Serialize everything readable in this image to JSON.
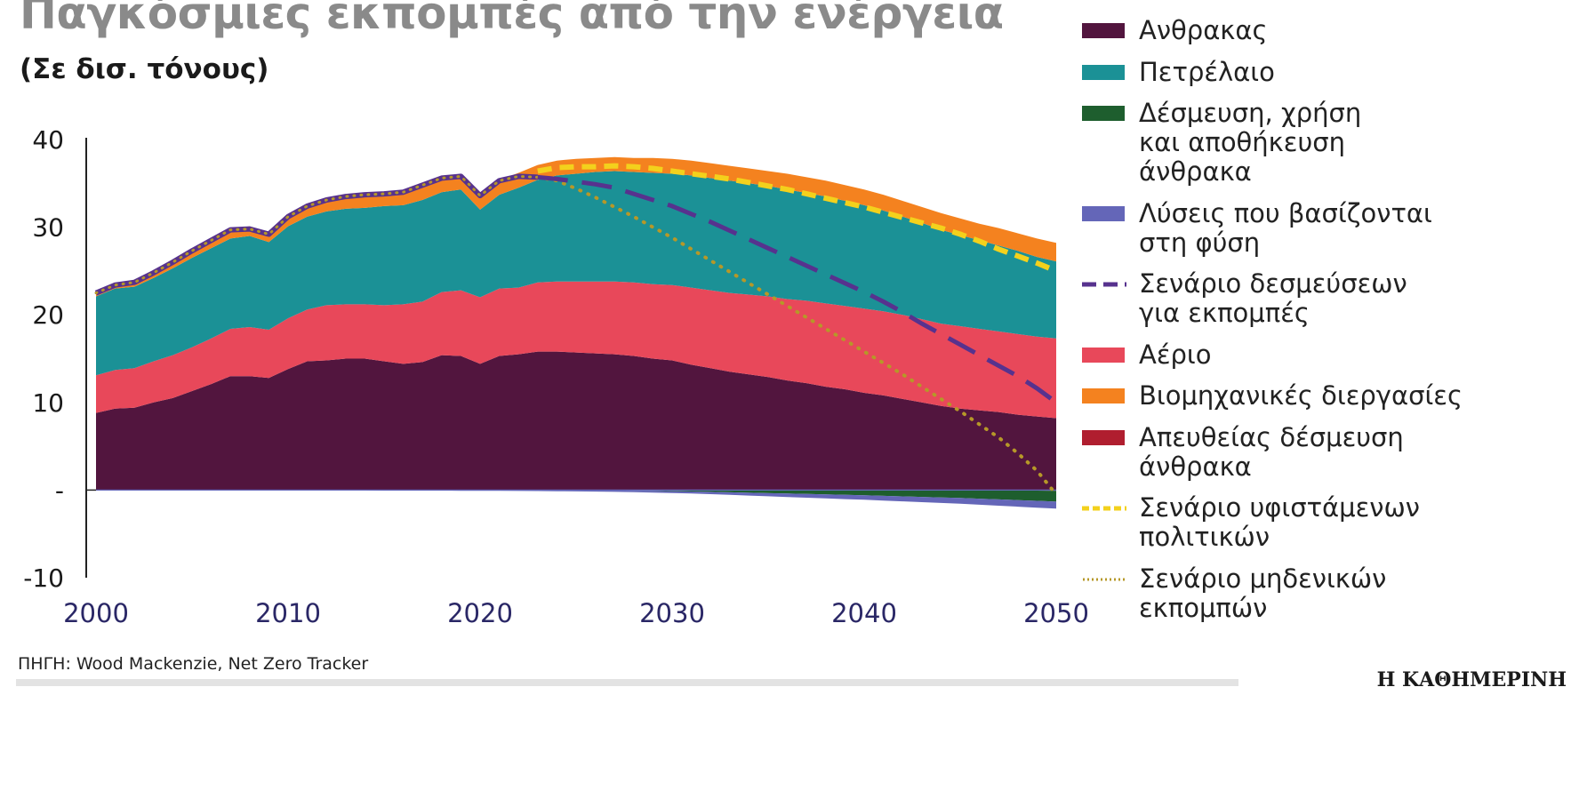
{
  "title": "Παγκόσμιες εκπομπές από την ενέργεια",
  "subtitle": "(Σε δισ. τόνους)",
  "source": "ΠΗΓΗ: Wood Mackenzie, Net Zero Tracker",
  "brand": "Η ΚΑΘΗΜΕΡΙΝΗ",
  "colors": {
    "coal": "#52153e",
    "oil": "#1b9196",
    "ccus": "#1e5e2e",
    "nature": "#6466b8",
    "commitments": "#57328e",
    "gas": "#e8485a",
    "industrial": "#f4821f",
    "dac": "#b01e2f",
    "current_policies": "#f3d11c",
    "net_zero": "#b69828",
    "axis": "#222222",
    "xtick": "#2a2766"
  },
  "legend": [
    {
      "key": "coal",
      "type": "box",
      "color": "#52153e",
      "lines": [
        "Ανθρακας"
      ]
    },
    {
      "key": "oil",
      "type": "box",
      "color": "#1b9196",
      "lines": [
        "Πετρέλαιο"
      ]
    },
    {
      "key": "ccus",
      "type": "box",
      "color": "#1e5e2e",
      "lines": [
        "Δέσμευση, χρήση",
        "και αποθήκευση",
        "άνθρακα"
      ]
    },
    {
      "key": "nature",
      "type": "box",
      "color": "#6466b8",
      "lines": [
        "Λύσεις που βασίζονται",
        "στη φύση"
      ]
    },
    {
      "key": "commitments",
      "type": "dash",
      "color": "#57328e",
      "lines": [
        "Σενάριο δεσμεύσεων",
        "για εκπομπές"
      ]
    },
    {
      "key": "gas",
      "type": "box",
      "color": "#e8485a",
      "lines": [
        "Αέριο"
      ]
    },
    {
      "key": "industrial",
      "type": "box",
      "color": "#f4821f",
      "lines": [
        "Βιομηχανικές διεργασίες"
      ]
    },
    {
      "key": "dac",
      "type": "box",
      "color": "#b01e2f",
      "lines": [
        "Απευθείας δέσμευση",
        "άνθρακα"
      ]
    },
    {
      "key": "current_policies",
      "type": "yellowdash",
      "color": "#f3d11c",
      "lines": [
        "Σενάριο υφιστάμενων",
        "πολιτικών"
      ]
    },
    {
      "key": "net_zero",
      "type": "dots",
      "color": "#b69828",
      "lines": [
        "Σενάριο μηδενικών",
        "εκπομπών"
      ]
    }
  ],
  "chart_data": {
    "type": "area",
    "title": "Παγκόσμιες εκπομπές από την ενέργεια",
    "ylabel": "(Σε δισ. τόνους)",
    "xlim": [
      2000,
      2050
    ],
    "ylim": [
      -10,
      40
    ],
    "x_ticks": [
      "2000",
      "2010",
      "2020",
      "2030",
      "2040",
      "2050"
    ],
    "y_ticks": [
      {
        "value": 40,
        "label": "40"
      },
      {
        "value": 30,
        "label": "30"
      },
      {
        "value": 20,
        "label": "20"
      },
      {
        "value": 10,
        "label": "10"
      },
      {
        "value": 0,
        "label": "-"
      },
      {
        "value": -10,
        "label": "-10"
      }
    ],
    "x": [
      2000,
      2001,
      2002,
      2003,
      2004,
      2005,
      2006,
      2007,
      2008,
      2009,
      2010,
      2011,
      2012,
      2013,
      2014,
      2015,
      2016,
      2017,
      2018,
      2019,
      2020,
      2021,
      2022,
      2023,
      2024,
      2025,
      2026,
      2027,
      2028,
      2029,
      2030,
      2031,
      2032,
      2033,
      2034,
      2035,
      2036,
      2037,
      2038,
      2039,
      2040,
      2041,
      2042,
      2043,
      2044,
      2045,
      2046,
      2047,
      2048,
      2049,
      2050
    ],
    "series": [
      {
        "name": "Ανθρακας",
        "key": "coal",
        "stack": "positive",
        "values": [
          8.8,
          9.3,
          9.4,
          10.0,
          10.5,
          11.3,
          12.1,
          13.0,
          13.0,
          12.8,
          13.8,
          14.7,
          14.8,
          15.0,
          15.0,
          14.7,
          14.4,
          14.6,
          15.4,
          15.3,
          14.4,
          15.3,
          15.5,
          15.8,
          15.8,
          15.7,
          15.6,
          15.5,
          15.3,
          15.0,
          14.8,
          14.3,
          13.9,
          13.5,
          13.2,
          12.9,
          12.5,
          12.2,
          11.8,
          11.5,
          11.1,
          10.8,
          10.4,
          10.0,
          9.6,
          9.3,
          9.1,
          8.9,
          8.6,
          8.4,
          8.2
        ]
      },
      {
        "name": "Αέριο",
        "key": "gas",
        "stack": "positive",
        "values": [
          4.3,
          4.4,
          4.5,
          4.7,
          4.9,
          5.0,
          5.2,
          5.4,
          5.6,
          5.5,
          5.8,
          5.9,
          6.3,
          6.2,
          6.2,
          6.4,
          6.8,
          6.9,
          7.2,
          7.5,
          7.6,
          7.7,
          7.6,
          7.9,
          8.0,
          8.1,
          8.2,
          8.3,
          8.4,
          8.5,
          8.6,
          8.8,
          8.9,
          9.0,
          9.1,
          9.2,
          9.3,
          9.4,
          9.5,
          9.5,
          9.6,
          9.6,
          9.6,
          9.5,
          9.4,
          9.4,
          9.3,
          9.2,
          9.2,
          9.1,
          9.1
        ]
      },
      {
        "name": "Πετρέλαιο",
        "key": "oil",
        "stack": "positive",
        "values": [
          9.0,
          9.3,
          9.3,
          9.5,
          9.9,
          10.2,
          10.3,
          10.3,
          10.4,
          10.0,
          10.5,
          10.6,
          10.7,
          10.9,
          11.0,
          11.3,
          11.3,
          11.6,
          11.4,
          11.5,
          10.0,
          10.7,
          11.4,
          11.7,
          12.1,
          12.3,
          12.5,
          12.6,
          12.6,
          12.7,
          12.7,
          12.8,
          12.8,
          12.8,
          12.7,
          12.6,
          12.5,
          12.3,
          12.2,
          12.0,
          11.8,
          11.5,
          11.2,
          11.0,
          10.7,
          10.4,
          10.1,
          9.8,
          9.5,
          9.1,
          8.8
        ]
      },
      {
        "name": "Βιομηχανικές διεργασίες",
        "key": "industrial",
        "stack": "positive",
        "values": [
          0.4,
          0.5,
          0.6,
          0.7,
          0.8,
          0.9,
          1.0,
          1.1,
          1.1,
          1.1,
          1.2,
          1.4,
          1.5,
          1.5,
          1.6,
          1.6,
          1.6,
          1.7,
          1.7,
          1.6,
          1.7,
          1.7,
          1.7,
          1.7,
          1.7,
          1.7,
          1.6,
          1.6,
          1.6,
          1.7,
          1.7,
          1.7,
          1.7,
          1.7,
          1.7,
          1.7,
          1.8,
          1.8,
          1.8,
          1.8,
          1.8,
          1.8,
          1.8,
          1.8,
          1.9,
          1.9,
          1.9,
          2.0,
          2.0,
          2.1,
          2.1
        ]
      },
      {
        "name": "Απευθείας δέσμευση άνθρακα",
        "key": "dac",
        "stack": "negative",
        "values": [
          0,
          0,
          0,
          0,
          0,
          0,
          0,
          0,
          0,
          0,
          0,
          0,
          0,
          0,
          0,
          0,
          0,
          0,
          0,
          0,
          0,
          0,
          0,
          0,
          0,
          0,
          0,
          0,
          0,
          0,
          0,
          0,
          0,
          0,
          0,
          0,
          0,
          0,
          0,
          0,
          0,
          0,
          0,
          0,
          0,
          0,
          -0.01,
          -0.02,
          -0.04,
          -0.06,
          -0.08
        ]
      },
      {
        "name": "Δέσμευση, χρήση και αποθήκευση άνθρακα",
        "key": "ccus",
        "stack": "negative",
        "values": [
          0,
          0,
          0,
          0,
          0,
          0,
          0,
          0,
          0,
          0,
          0,
          0,
          0,
          0,
          0,
          0,
          0,
          0,
          0,
          0,
          0,
          0,
          0,
          0,
          -0.01,
          -0.02,
          -0.03,
          -0.05,
          -0.07,
          -0.09,
          -0.12,
          -0.16,
          -0.2,
          -0.25,
          -0.3,
          -0.35,
          -0.4,
          -0.45,
          -0.5,
          -0.55,
          -0.6,
          -0.66,
          -0.72,
          -0.78,
          -0.84,
          -0.9,
          -0.97,
          -1.04,
          -1.11,
          -1.17,
          -1.24
        ]
      },
      {
        "name": "Λύσεις που βασίζονται στη φύση",
        "key": "nature",
        "stack": "negative",
        "values": [
          -0.05,
          -0.05,
          -0.05,
          -0.05,
          -0.05,
          -0.05,
          -0.05,
          -0.05,
          -0.05,
          -0.05,
          -0.06,
          -0.06,
          -0.06,
          -0.06,
          -0.06,
          -0.07,
          -0.07,
          -0.07,
          -0.07,
          -0.08,
          -0.08,
          -0.09,
          -0.1,
          -0.11,
          -0.12,
          -0.13,
          -0.14,
          -0.15,
          -0.17,
          -0.19,
          -0.21,
          -0.24,
          -0.27,
          -0.3,
          -0.33,
          -0.36,
          -0.39,
          -0.42,
          -0.45,
          -0.48,
          -0.51,
          -0.54,
          -0.57,
          -0.6,
          -0.63,
          -0.66,
          -0.69,
          -0.72,
          -0.75,
          -0.78,
          -0.8
        ]
      }
    ],
    "scenarios": [
      {
        "name": "Σενάριο υφιστάμενων πολιτικών",
        "key": "current_policies",
        "style": "dash",
        "x": [
          2023,
          2024,
          2025,
          2026,
          2027,
          2028,
          2029,
          2030,
          2031,
          2032,
          2033,
          2034,
          2035,
          2036,
          2037,
          2038,
          2039,
          2040,
          2041,
          2042,
          2043,
          2044,
          2045,
          2046,
          2047,
          2048,
          2049,
          2050
        ],
        "values": [
          36.4,
          36.8,
          36.9,
          36.9,
          37.0,
          36.9,
          36.7,
          36.4,
          36.1,
          35.8,
          35.5,
          35.1,
          34.7,
          34.3,
          33.8,
          33.3,
          32.8,
          32.3,
          31.7,
          31.1,
          30.5,
          29.9,
          29.2,
          28.4,
          27.5,
          26.7,
          25.9,
          25.0
        ]
      },
      {
        "name": "Σενάριο δεσμεύσεων για εκπομπές",
        "key": "commitments",
        "style": "longdash",
        "x": [
          2000,
          2001,
          2002,
          2003,
          2004,
          2005,
          2006,
          2007,
          2008,
          2009,
          2010,
          2011,
          2012,
          2013,
          2014,
          2015,
          2016,
          2017,
          2018,
          2019,
          2020,
          2021,
          2022,
          2023,
          2024,
          2025,
          2026,
          2027,
          2028,
          2029,
          2030,
          2031,
          2032,
          2033,
          2034,
          2035,
          2036,
          2037,
          2038,
          2039,
          2040,
          2041,
          2042,
          2043,
          2044,
          2045,
          2046,
          2047,
          2048,
          2049,
          2050
        ],
        "values": [
          22.5,
          23.4,
          23.7,
          24.8,
          26.0,
          27.3,
          28.5,
          29.7,
          29.8,
          29.2,
          31.2,
          32.4,
          33.1,
          33.5,
          33.7,
          33.8,
          34.0,
          34.8,
          35.6,
          35.8,
          33.6,
          35.3,
          35.8,
          35.7,
          35.5,
          35.2,
          34.9,
          34.5,
          33.8,
          33.1,
          32.4,
          31.5,
          30.6,
          29.6,
          28.6,
          27.6,
          26.6,
          25.6,
          24.6,
          23.6,
          22.6,
          21.5,
          20.3,
          19.0,
          17.8,
          16.6,
          15.4,
          14.2,
          13.0,
          11.6,
          10.0
        ]
      },
      {
        "name": "Σενάριο μηδενικών εκπομπών",
        "key": "net_zero",
        "style": "dots",
        "x": [
          2023,
          2024,
          2025,
          2026,
          2027,
          2028,
          2029,
          2030,
          2031,
          2032,
          2033,
          2034,
          2035,
          2036,
          2037,
          2038,
          2039,
          2040,
          2041,
          2042,
          2043,
          2044,
          2045,
          2046,
          2047,
          2048,
          2049,
          2050
        ],
        "values": [
          35.7,
          35.3,
          34.4,
          33.4,
          32.3,
          31.2,
          30.0,
          28.8,
          27.5,
          26.2,
          24.9,
          23.6,
          22.3,
          21.0,
          19.7,
          18.4,
          17.1,
          15.8,
          14.5,
          13.2,
          11.8,
          10.4,
          9.0,
          7.5,
          6.0,
          4.2,
          2.2,
          -0.5
        ]
      }
    ]
  }
}
